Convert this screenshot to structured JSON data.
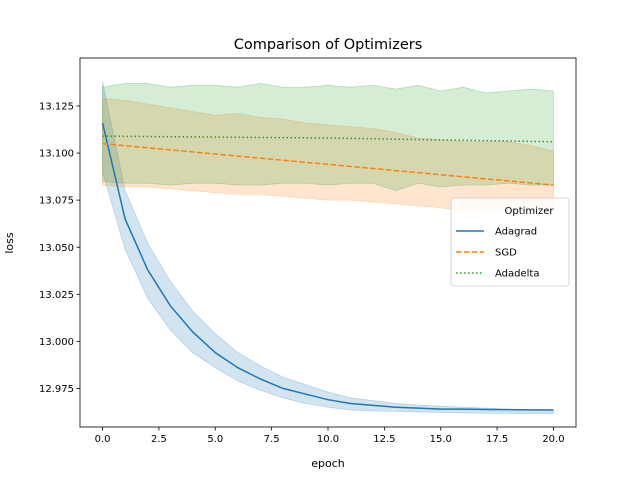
{
  "chart_data": {
    "type": "line",
    "title": "Comparison of Optimizers",
    "xlabel": "epoch",
    "ylabel": "loss",
    "xlim": [
      -1,
      21
    ],
    "ylim": [
      12.9545,
      13.1505
    ],
    "xticks": [
      0,
      2.5,
      5,
      7.5,
      10,
      12.5,
      15,
      17.5,
      20
    ],
    "xtick_labels": [
      "0.0",
      "2.5",
      "5.0",
      "7.5",
      "10.0",
      "12.5",
      "15.0",
      "17.5",
      "20.0"
    ],
    "yticks": [
      12.975,
      13.0,
      13.025,
      13.05,
      13.075,
      13.1,
      13.125
    ],
    "ytick_labels": [
      "12.975",
      "13.000",
      "13.025",
      "13.050",
      "13.075",
      "13.100",
      "13.125"
    ],
    "grid": false,
    "legend": {
      "title": "Optimizer",
      "placement": "center-right"
    },
    "x": [
      0,
      1,
      2,
      3,
      4,
      5,
      6,
      7,
      8,
      9,
      10,
      11,
      12,
      13,
      14,
      15,
      16,
      17,
      18,
      19,
      20
    ],
    "series": [
      {
        "name": "Adagrad",
        "color": "#1f77b4",
        "style": "solid",
        "values": [
          13.116,
          13.065,
          13.038,
          13.019,
          13.005,
          12.994,
          12.986,
          12.98,
          12.975,
          12.972,
          12.969,
          12.967,
          12.966,
          12.965,
          12.9645,
          12.964,
          12.964,
          12.9638,
          12.9637,
          12.9636,
          12.9635
        ],
        "upper": [
          13.138,
          13.08,
          13.052,
          13.032,
          13.016,
          13.004,
          12.994,
          12.987,
          12.981,
          12.977,
          12.973,
          12.97,
          12.9685,
          12.967,
          12.9662,
          12.9655,
          12.965,
          12.9645,
          12.964,
          12.9638,
          12.9637
        ],
        "lower": [
          13.09,
          13.049,
          13.023,
          13.006,
          12.994,
          12.986,
          12.979,
          12.974,
          12.97,
          12.967,
          12.965,
          12.9635,
          12.963,
          12.9628,
          12.9625,
          12.9622,
          12.962,
          12.9618,
          12.9618,
          12.9617,
          12.9617
        ]
      },
      {
        "name": "SGD",
        "color": "#ff7f0e",
        "style": "dashed",
        "values": [
          13.105,
          13.1039,
          13.1028,
          13.1017,
          13.1006,
          13.0995,
          13.0984,
          13.0973,
          13.0962,
          13.0951,
          13.094,
          13.0929,
          13.0918,
          13.0907,
          13.0896,
          13.0885,
          13.0874,
          13.0863,
          13.0852,
          13.0841,
          13.083
        ],
        "upper": [
          13.129,
          13.128,
          13.126,
          13.124,
          13.122,
          13.12,
          13.121,
          13.119,
          13.118,
          13.116,
          13.115,
          13.114,
          13.113,
          13.111,
          13.108,
          13.107,
          13.106,
          13.106,
          13.106,
          13.104,
          13.101
        ],
        "lower": [
          13.083,
          13.082,
          13.082,
          13.081,
          13.08,
          13.079,
          13.078,
          13.078,
          13.077,
          13.076,
          13.075,
          13.075,
          13.074,
          13.073,
          13.072,
          13.071,
          13.069,
          13.069,
          13.07,
          13.069,
          13.068
        ]
      },
      {
        "name": "Adadelta",
        "color": "#2ca02c",
        "style": "dotted",
        "values": [
          13.109,
          13.1089,
          13.1088,
          13.1087,
          13.1086,
          13.1085,
          13.1084,
          13.1083,
          13.1082,
          13.1081,
          13.108,
          13.1078,
          13.1076,
          13.1074,
          13.1072,
          13.107,
          13.1068,
          13.1066,
          13.1064,
          13.1062,
          13.106
        ],
        "upper": [
          13.135,
          13.137,
          13.137,
          13.135,
          13.136,
          13.136,
          13.135,
          13.137,
          13.135,
          13.135,
          13.136,
          13.135,
          13.136,
          13.134,
          13.136,
          13.133,
          13.135,
          13.132,
          13.133,
          13.134,
          13.133
        ],
        "lower": [
          13.085,
          13.084,
          13.084,
          13.083,
          13.084,
          13.084,
          13.083,
          13.083,
          13.084,
          13.084,
          13.083,
          13.084,
          13.084,
          13.08,
          13.084,
          13.082,
          13.083,
          13.083,
          13.084,
          13.083,
          13.083
        ]
      }
    ]
  }
}
